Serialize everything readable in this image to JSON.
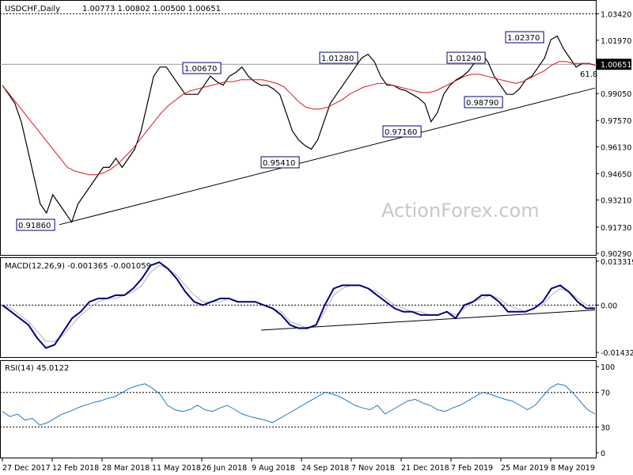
{
  "header": {
    "symbol": "USDCHF,Daily",
    "ohlc": "1.00773 1.00802 1.00500 1.00651"
  },
  "watermark": "ActionForex.com",
  "colors": {
    "price": "#000000",
    "sma": "#e0141e",
    "macd": "#000080",
    "signal": "#b0b0b0",
    "rsi": "#1e78c8",
    "current_bg": "#000000",
    "current_fg": "#ffffff",
    "label_border": "#000080"
  },
  "chart_data": [
    {
      "type": "line",
      "title": "USDCHF,Daily",
      "ylim": [
        0.9029,
        1.04
      ],
      "y_ticks": [
        "1.03420",
        "1.01970",
        "0.99050",
        "0.97570",
        "0.96130",
        "0.94650",
        "0.93210",
        "0.91730",
        "0.90290"
      ],
      "current_price": "1.00651",
      "x_labels": [
        "27 Dec 2017",
        "12 Feb 2018",
        "28 Mar 2018",
        "11 May 2018",
        "26 Jun 2018",
        "9 Aug 2018",
        "24 Sep 2018",
        "7 Nov 2018",
        "21 Dec 2018",
        "7 Feb 2019",
        "25 Mar 2019",
        "8 May 2019"
      ],
      "series": [
        {
          "values": [
            0.995,
            0.99,
            0.985,
            0.975,
            0.96,
            0.945,
            0.93,
            0.925,
            0.935,
            0.93,
            0.925,
            0.92,
            0.93,
            0.935,
            0.94,
            0.945,
            0.95,
            0.95,
            0.955,
            0.95,
            0.955,
            0.96,
            0.97,
            0.985,
            1.0,
            1.005,
            1.005,
            1.0,
            0.995,
            0.99,
            0.99,
            0.99,
            0.995,
            1.0,
            0.997,
            0.995,
            1.0,
            1.002,
            1.005,
            1.0,
            0.997,
            0.995,
            0.995,
            0.993,
            0.99,
            0.98,
            0.97,
            0.965,
            0.962,
            0.96,
            0.965,
            0.975,
            0.985,
            0.99,
            0.995,
            1.0,
            1.005,
            1.01,
            1.012,
            1.008,
            1.0,
            0.995,
            0.995,
            0.993,
            0.992,
            0.99,
            0.988,
            0.985,
            0.975,
            0.98,
            0.99,
            0.995,
            0.998,
            1.0,
            1.003,
            1.008,
            1.012,
            1.008,
            1.0,
            0.995,
            0.99,
            0.99,
            0.993,
            0.998,
            1.0,
            1.005,
            1.01,
            1.02,
            1.022,
            1.015,
            1.01,
            1.005,
            1.007,
            1.007,
            1.006
          ]
        },
        {
          "values": [
            0.995,
            0.99,
            0.985,
            0.98,
            0.975,
            0.97,
            0.965,
            0.96,
            0.955,
            0.95,
            0.948,
            0.947,
            0.946,
            0.946,
            0.947,
            0.949,
            0.952,
            0.956,
            0.96,
            0.965,
            0.97,
            0.975,
            0.98,
            0.984,
            0.987,
            0.99,
            0.992,
            0.993,
            0.994,
            0.995,
            0.996,
            0.997,
            0.997,
            0.998,
            0.998,
            0.998,
            0.998,
            0.997,
            0.996,
            0.994,
            0.99,
            0.986,
            0.983,
            0.982,
            0.982,
            0.983,
            0.985,
            0.987,
            0.99,
            0.992,
            0.994,
            0.995,
            0.996,
            0.996,
            0.995,
            0.994,
            0.993,
            0.992,
            0.991,
            0.991,
            0.992,
            0.994,
            0.996,
            0.998,
            1.0,
            1.001,
            1.001,
            1.0,
            0.999,
            0.998,
            0.997,
            0.996,
            0.997,
            0.999,
            1.001,
            1.003,
            1.006,
            1.008,
            1.008,
            1.007,
            1.007,
            1.007,
            1.006
          ]
        }
      ],
      "annotations": [
        "0.91860",
        "0.95410",
        "1.00670",
        "1.01280",
        "0.97160",
        "1.01240",
        "0.98790",
        "1.02370",
        "61.8"
      ]
    },
    {
      "type": "line",
      "title": "MACD(12,26,9) -0.001365 -0.001059",
      "y_ticks": [
        "0.013319",
        "0.00",
        "-0.014323"
      ],
      "ylim": [
        -0.0155,
        0.014
      ],
      "series": [
        {
          "values": [
            0.0,
            -0.002,
            -0.004,
            -0.006,
            -0.01,
            -0.013,
            -0.012,
            -0.008,
            -0.004,
            -0.002,
            0.001,
            0.002,
            0.002,
            0.003,
            0.003,
            0.005,
            0.008,
            0.012,
            0.013,
            0.011,
            0.008,
            0.004,
            0.001,
            0.0,
            0.001,
            0.002,
            0.002,
            0.001,
            0.001,
            0.001,
            0.0,
            -0.001,
            -0.003,
            -0.006,
            -0.007,
            -0.007,
            -0.006,
            0.0,
            0.005,
            0.006,
            0.006,
            0.006,
            0.005,
            0.003,
            0.001,
            -0.001,
            -0.002,
            -0.002,
            -0.003,
            -0.003,
            -0.003,
            -0.002,
            -0.004,
            0.0,
            0.001,
            0.003,
            0.003,
            0.001,
            -0.002,
            -0.002,
            -0.002,
            -0.001,
            0.001,
            0.005,
            0.006,
            0.004,
            0.001,
            -0.001,
            -0.001
          ]
        },
        {
          "values": [
            0.0,
            -0.001,
            -0.003,
            -0.005,
            -0.008,
            -0.011,
            -0.011,
            -0.009,
            -0.006,
            -0.003,
            -0.001,
            0.001,
            0.002,
            0.002,
            0.003,
            0.004,
            0.006,
            0.01,
            0.012,
            0.011,
            0.009,
            0.006,
            0.003,
            0.001,
            0.001,
            0.001,
            0.002,
            0.001,
            0.001,
            0.001,
            0.0,
            -0.001,
            -0.002,
            -0.005,
            -0.006,
            -0.007,
            -0.006,
            -0.002,
            0.003,
            0.005,
            0.006,
            0.006,
            0.005,
            0.004,
            0.002,
            0.0,
            -0.001,
            -0.002,
            -0.002,
            -0.003,
            -0.003,
            -0.002,
            -0.003,
            -0.001,
            0.001,
            0.002,
            0.003,
            0.002,
            0.0,
            -0.001,
            -0.002,
            -0.001,
            0.0,
            0.003,
            0.005,
            0.004,
            0.002,
            0.0,
            -0.001
          ]
        }
      ]
    },
    {
      "type": "line",
      "title": "RSI(14) 45.0122",
      "y_ticks": [
        "100",
        "70",
        "30",
        "0"
      ],
      "ylim": [
        0,
        100
      ],
      "series": [
        {
          "values": [
            48,
            42,
            45,
            38,
            40,
            32,
            35,
            40,
            45,
            48,
            52,
            55,
            58,
            60,
            63,
            65,
            70,
            75,
            78,
            80,
            75,
            68,
            55,
            50,
            48,
            50,
            55,
            50,
            48,
            52,
            55,
            50,
            45,
            42,
            40,
            38,
            35,
            40,
            45,
            50,
            55,
            60,
            65,
            70,
            68,
            65,
            60,
            55,
            52,
            50,
            55,
            45,
            50,
            55,
            60,
            62,
            58,
            55,
            50,
            48,
            52,
            55,
            60,
            65,
            70,
            68,
            65,
            62,
            60,
            55,
            50,
            55,
            65,
            75,
            80,
            78,
            70,
            60,
            50,
            45
          ]
        }
      ]
    }
  ]
}
